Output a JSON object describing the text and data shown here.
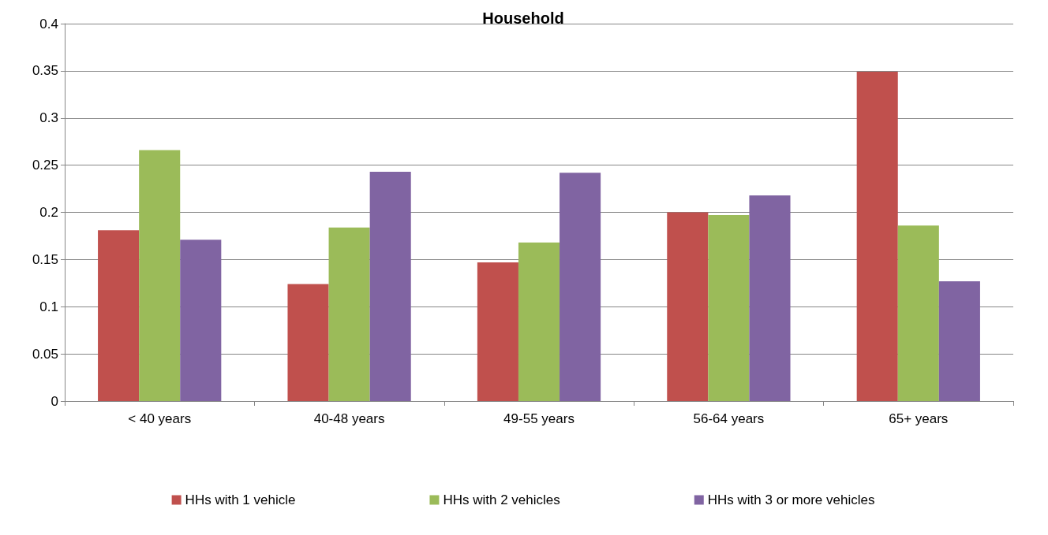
{
  "chart_data": {
    "type": "bar",
    "title": "Household",
    "categories": [
      "< 40 years",
      "40-48 years",
      "49-55 years",
      "56-64 years",
      "65+ years"
    ],
    "series": [
      {
        "name": "HHs with 1 vehicle",
        "color": "#c0504d",
        "values": [
          0.181,
          0.124,
          0.147,
          0.2,
          0.349
        ]
      },
      {
        "name": "HHs with 2 vehicles",
        "color": "#9bbb59",
        "values": [
          0.266,
          0.184,
          0.168,
          0.197,
          0.186
        ]
      },
      {
        "name": "HHs with 3 or more vehicles",
        "color": "#8064a2",
        "values": [
          0.171,
          0.243,
          0.242,
          0.218,
          0.127
        ]
      }
    ],
    "ylim": [
      0,
      0.4
    ],
    "yticks": [
      0,
      0.05,
      0.1,
      0.15,
      0.2,
      0.25,
      0.3,
      0.35,
      0.4
    ],
    "grid": "y",
    "legend": "bottom"
  }
}
